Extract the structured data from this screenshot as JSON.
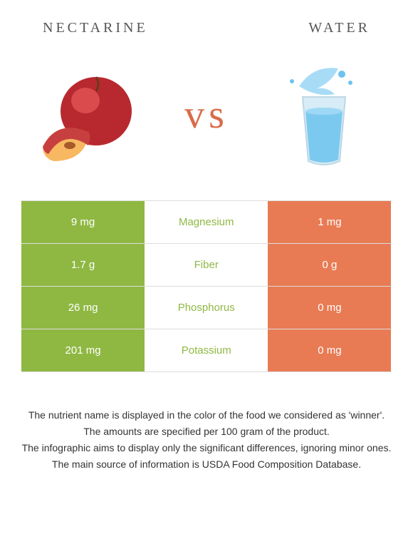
{
  "titles": {
    "left": "Nectarine",
    "right": "Water"
  },
  "vs_label": "vs",
  "colors": {
    "left_food": "#8fb843",
    "right_food": "#e87b54",
    "nectarine_body": "#b7292f",
    "nectarine_hl": "#e85a5a",
    "nectarine_flesh": "#f7b861",
    "nectarine_skin": "#c7403f",
    "water_glass": "#d7ecf6",
    "water_liquid": "#6cc3ee",
    "water_splash": "#9ed8f5"
  },
  "rows": [
    {
      "nutrient": "Magnesium",
      "left": "9 mg",
      "right": "1 mg",
      "winner": "left"
    },
    {
      "nutrient": "Fiber",
      "left": "1.7 g",
      "right": "0 g",
      "winner": "left"
    },
    {
      "nutrient": "Phosphorus",
      "left": "26 mg",
      "right": "0 mg",
      "winner": "left"
    },
    {
      "nutrient": "Potassium",
      "left": "201 mg",
      "right": "0 mg",
      "winner": "left"
    }
  ],
  "notes": [
    "The nutrient name is displayed in the color of the food we considered as 'winner'.",
    "The amounts are specified per 100 gram of the product.",
    "The infographic aims to display only the significant differences, ignoring minor ones.",
    "The main source of information is USDA Food Composition Database."
  ]
}
